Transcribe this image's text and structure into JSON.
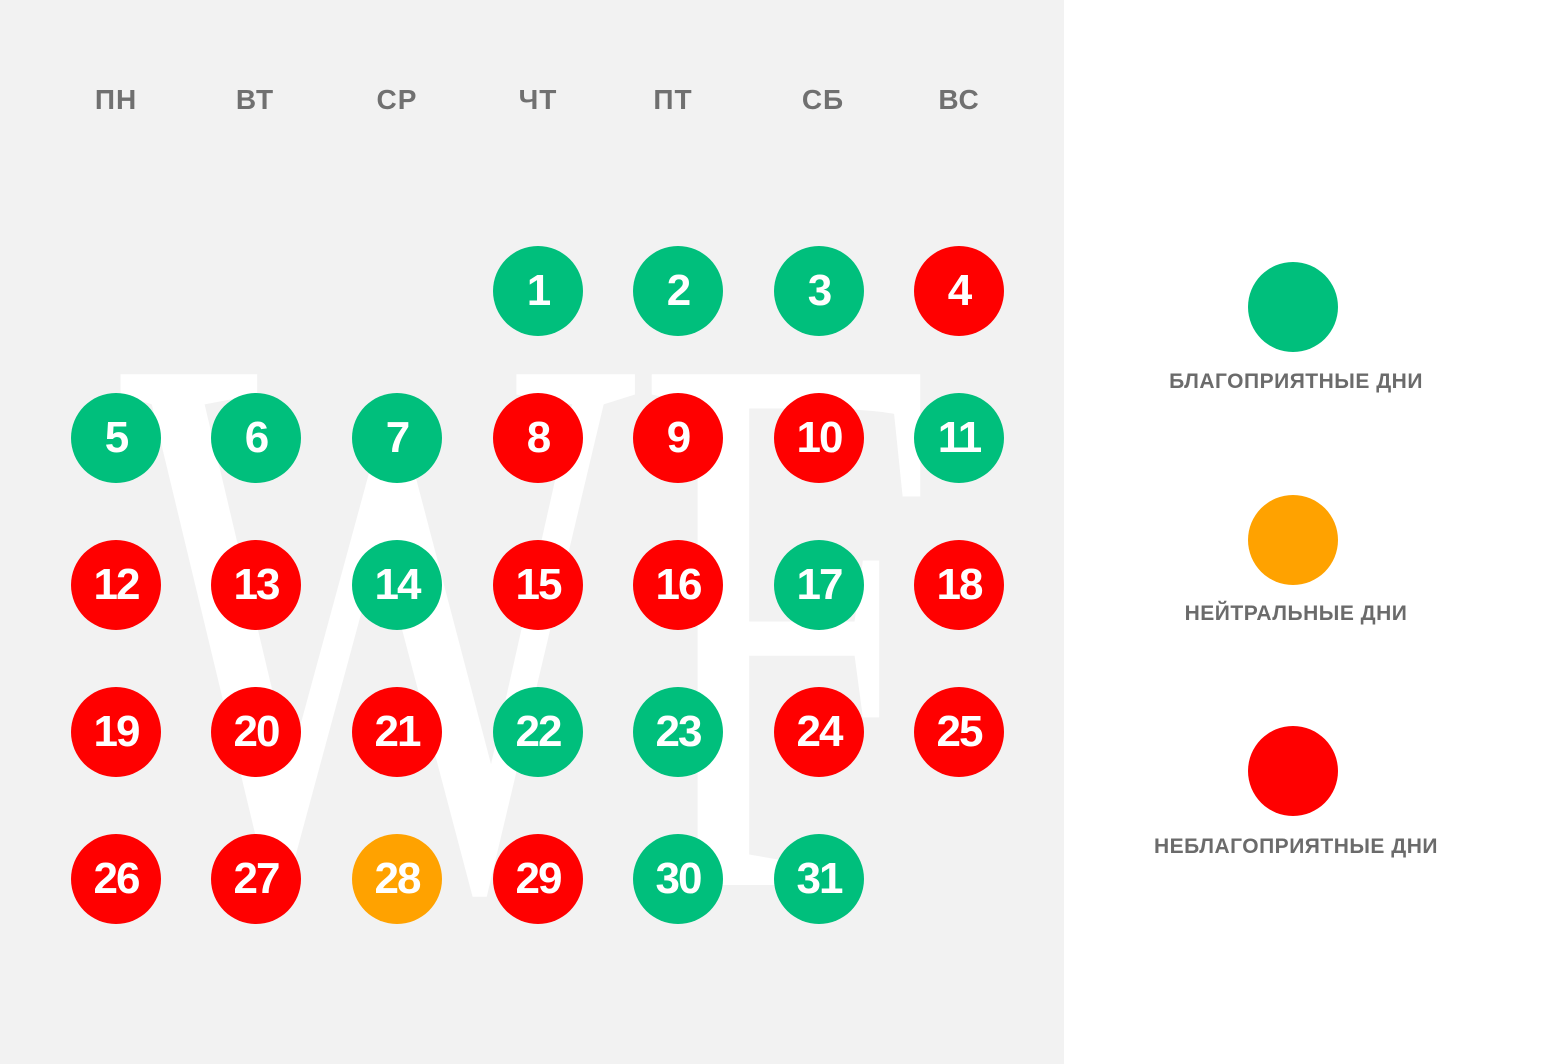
{
  "colors": {
    "favorable": "#00bf7c",
    "neutral": "#ffa200",
    "unfavorable": "#ff0000",
    "panel": "#f2f2f2",
    "watermark": "#ffffff"
  },
  "weekdays": [
    "ПН",
    "ВТ",
    "СР",
    "ЧТ",
    "ПТ",
    "СБ",
    "ВС"
  ],
  "days": [
    {
      "day": "1",
      "status": "favorable",
      "col": 4,
      "row": 1
    },
    {
      "day": "2",
      "status": "favorable",
      "col": 5,
      "row": 1
    },
    {
      "day": "3",
      "status": "favorable",
      "col": 6,
      "row": 1
    },
    {
      "day": "4",
      "status": "unfavorable",
      "col": 7,
      "row": 1
    },
    {
      "day": "5",
      "status": "favorable",
      "col": 1,
      "row": 2
    },
    {
      "day": "6",
      "status": "favorable",
      "col": 2,
      "row": 2
    },
    {
      "day": "7",
      "status": "favorable",
      "col": 3,
      "row": 2
    },
    {
      "day": "8",
      "status": "unfavorable",
      "col": 4,
      "row": 2
    },
    {
      "day": "9",
      "status": "unfavorable",
      "col": 5,
      "row": 2
    },
    {
      "day": "10",
      "status": "unfavorable",
      "col": 6,
      "row": 2
    },
    {
      "day": "11",
      "status": "favorable",
      "col": 7,
      "row": 2
    },
    {
      "day": "12",
      "status": "unfavorable",
      "col": 1,
      "row": 3
    },
    {
      "day": "13",
      "status": "unfavorable",
      "col": 2,
      "row": 3
    },
    {
      "day": "14",
      "status": "favorable",
      "col": 3,
      "row": 3
    },
    {
      "day": "15",
      "status": "unfavorable",
      "col": 4,
      "row": 3
    },
    {
      "day": "16",
      "status": "unfavorable",
      "col": 5,
      "row": 3
    },
    {
      "day": "17",
      "status": "favorable",
      "col": 6,
      "row": 3
    },
    {
      "day": "18",
      "status": "unfavorable",
      "col": 7,
      "row": 3
    },
    {
      "day": "19",
      "status": "unfavorable",
      "col": 1,
      "row": 4
    },
    {
      "day": "20",
      "status": "unfavorable",
      "col": 2,
      "row": 4
    },
    {
      "day": "21",
      "status": "unfavorable",
      "col": 3,
      "row": 4
    },
    {
      "day": "22",
      "status": "favorable",
      "col": 4,
      "row": 4
    },
    {
      "day": "23",
      "status": "favorable",
      "col": 5,
      "row": 4
    },
    {
      "day": "24",
      "status": "unfavorable",
      "col": 6,
      "row": 4
    },
    {
      "day": "25",
      "status": "unfavorable",
      "col": 7,
      "row": 4
    },
    {
      "day": "26",
      "status": "unfavorable",
      "col": 1,
      "row": 5
    },
    {
      "day": "27",
      "status": "unfavorable",
      "col": 2,
      "row": 5
    },
    {
      "day": "28",
      "status": "neutral",
      "col": 3,
      "row": 5
    },
    {
      "day": "29",
      "status": "unfavorable",
      "col": 4,
      "row": 5
    },
    {
      "day": "30",
      "status": "favorable",
      "col": 5,
      "row": 5
    },
    {
      "day": "31",
      "status": "favorable",
      "col": 6,
      "row": 5
    }
  ],
  "legend": [
    {
      "key": "favorable",
      "label": "БЛАГОПРИЯТНЫЕ ДНИ"
    },
    {
      "key": "neutral",
      "label": "НЕЙТРАЛЬНЫЕ ДНИ"
    },
    {
      "key": "unfavorable",
      "label": "НЕБЛАГОПРИЯТНЫЕ ДНИ"
    }
  ],
  "watermark": {
    "text": "WF"
  }
}
